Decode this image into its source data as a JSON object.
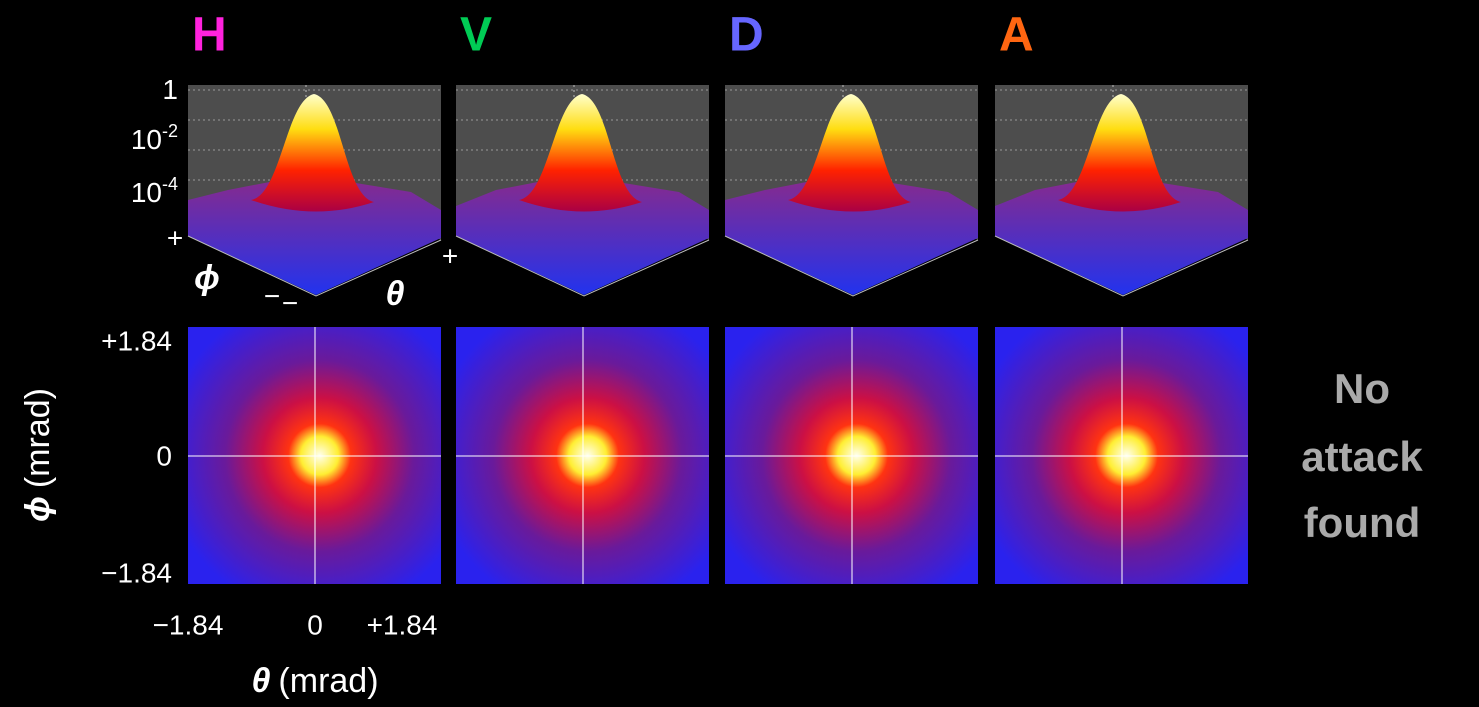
{
  "panels": [
    {
      "label": "H",
      "color": "#ff22dd"
    },
    {
      "label": "V",
      "color": "#00cc55"
    },
    {
      "label": "D",
      "color": "#6666ff"
    },
    {
      "label": "A",
      "color": "#ff6611"
    }
  ],
  "surface_axis": {
    "zticks": [
      {
        "base": "1"
      },
      {
        "base": "10",
        "exp": "-2"
      },
      {
        "base": "10",
        "exp": "-4"
      }
    ],
    "plus": "+",
    "minus": "−",
    "phi": "ϕ",
    "theta": "θ"
  },
  "map_axis": {
    "yticks": [
      "+1.84",
      "0",
      "−1.84"
    ],
    "xticks": [
      "−1.84",
      "0",
      "+1.84"
    ],
    "ylabel_symbol": "ϕ",
    "xlabel_symbol": "θ",
    "unit": "(mrad)"
  },
  "note": [
    "No",
    "attack",
    "found"
  ]
}
